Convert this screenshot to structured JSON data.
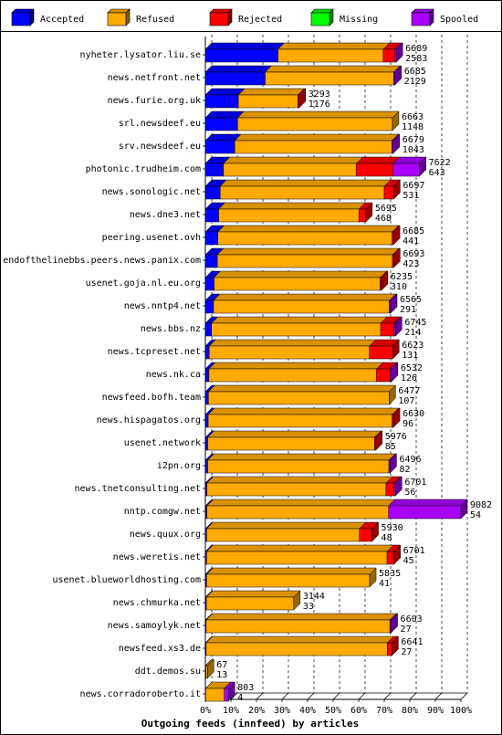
{
  "colors": {
    "Accepted": "#0000ff",
    "Refused": "#ffaa00",
    "Rejected": "#ff0000",
    "Missing": "#00ff00",
    "Spooled": "#aa00ff"
  },
  "chart_data": {
    "type": "bar",
    "orientation": "horizontal",
    "stacked": true,
    "xlabel": "Outgoing feeds (innfeed) by articles",
    "xlim": [
      0,
      100
    ],
    "x_ticks": [
      "0%",
      "10%",
      "20%",
      "30%",
      "40%",
      "50%",
      "60%",
      "70%",
      "80%",
      "90%",
      "100%"
    ],
    "legend_position": "top",
    "grid": "vertical dashed",
    "series_names": [
      "Accepted",
      "Refused",
      "Rejected",
      "Missing",
      "Spooled"
    ],
    "rows": [
      {
        "site": "nyheter.lysator.liu.se",
        "offered": "6689",
        "accepted": "2583",
        "values": [
          28.4,
          41.2,
          4.6,
          0,
          0.5
        ]
      },
      {
        "site": "news.netfront.net",
        "offered": "6685",
        "accepted": "2129",
        "values": [
          23.4,
          50.3,
          0,
          0,
          0.5
        ]
      },
      {
        "site": "news.furie.org.uk",
        "offered": "3293",
        "accepted": "1176",
        "values": [
          12.9,
          23.3,
          0.5,
          0,
          0
        ]
      },
      {
        "site": "srl.newsdeef.eu",
        "offered": "6663",
        "accepted": "1148",
        "values": [
          12.6,
          60.6,
          0,
          0,
          0
        ]
      },
      {
        "site": "srv.newsdeef.eu",
        "offered": "6679",
        "accepted": "1043",
        "values": [
          11.5,
          61.5,
          0,
          0,
          0.5
        ]
      },
      {
        "site": "photonic.trudheim.com",
        "offered": "7622",
        "accepted": "643",
        "values": [
          7.1,
          52.0,
          14.4,
          0,
          10.3
        ]
      },
      {
        "site": "news.sonologic.net",
        "offered": "6697",
        "accepted": "531",
        "values": [
          5.8,
          64.2,
          3.7,
          0,
          0
        ]
      },
      {
        "site": "news.dne3.net",
        "offered": "5695",
        "accepted": "468",
        "values": [
          5.2,
          54.9,
          2.7,
          0,
          0
        ]
      },
      {
        "site": "peering.usenet.ovh",
        "offered": "6685",
        "accepted": "441",
        "values": [
          4.9,
          68.2,
          0.5,
          0,
          0
        ]
      },
      {
        "site": "endofthelinebbs.peers.news.panix.com",
        "offered": "6693",
        "accepted": "423",
        "values": [
          4.7,
          68.5,
          0.5,
          0,
          0
        ]
      },
      {
        "site": "usenet.goja.nl.eu.org",
        "offered": "6235",
        "accepted": "310",
        "values": [
          3.4,
          65.0,
          0.5,
          0,
          0
        ]
      },
      {
        "site": "news.nntp4.net",
        "offered": "6565",
        "accepted": "291",
        "values": [
          3.2,
          68.8,
          0,
          0,
          0.5
        ]
      },
      {
        "site": "news.bbs.nz",
        "offered": "6745",
        "accepted": "214",
        "values": [
          2.4,
          66.2,
          5.3,
          0,
          0.5
        ]
      },
      {
        "site": "news.tcpreset.net",
        "offered": "6623",
        "accepted": "131",
        "values": [
          1.5,
          62.7,
          9.1,
          0,
          0
        ]
      },
      {
        "site": "news.nk.ca",
        "offered": "6532",
        "accepted": "126",
        "values": [
          1.4,
          65.6,
          5.3,
          0,
          0.5
        ]
      },
      {
        "site": "newsfeed.bofh.team",
        "offered": "6477",
        "accepted": "107",
        "values": [
          1.2,
          70.7,
          0,
          0,
          0
        ]
      },
      {
        "site": "news.hispagatos.org",
        "offered": "6630",
        "accepted": "96",
        "values": [
          1.1,
          72.0,
          0.5,
          0,
          0
        ]
      },
      {
        "site": "usenet.network",
        "offered": "5976",
        "accepted": "85",
        "values": [
          0.9,
          65.3,
          0.5,
          0,
          0
        ]
      },
      {
        "site": "i2pn.org",
        "offered": "6496",
        "accepted": "82",
        "values": [
          0.9,
          70.9,
          0,
          0,
          0.5
        ]
      },
      {
        "site": "news.tnetconsulting.net",
        "offered": "6701",
        "accepted": "56",
        "values": [
          0.6,
          70.1,
          3.2,
          0,
          0.5
        ]
      },
      {
        "site": "nntp.comgw.net",
        "offered": "9082",
        "accepted": "54",
        "values": [
          0.6,
          71.1,
          0,
          0,
          28.3
        ]
      },
      {
        "site": "news.quux.org",
        "offered": "5930",
        "accepted": "48",
        "values": [
          0.5,
          59.8,
          4.9,
          0,
          0
        ]
      },
      {
        "site": "news.weretis.net",
        "offered": "6701",
        "accepted": "45",
        "values": [
          0.5,
          70.6,
          2.7,
          0,
          0
        ]
      },
      {
        "site": "usenet.blueworldhosting.com",
        "offered": "5835",
        "accepted": "41",
        "values": [
          0.5,
          63.8,
          0,
          0,
          0
        ]
      },
      {
        "site": "news.chmurka.net",
        "offered": "3144",
        "accepted": "33",
        "values": [
          0.4,
          34.2,
          0,
          0,
          0
        ]
      },
      {
        "site": "news.samoylyk.net",
        "offered": "6603",
        "accepted": "27",
        "values": [
          0.3,
          71.9,
          0,
          0,
          0.5
        ]
      },
      {
        "site": "newsfeed.xs3.de",
        "offered": "6641",
        "accepted": "27",
        "values": [
          0.3,
          70.9,
          1.8,
          0,
          0
        ]
      },
      {
        "site": "ddt.demos.su",
        "offered": "67",
        "accepted": "13",
        "values": [
          0.2,
          0.6,
          0,
          0,
          0
        ]
      },
      {
        "site": "news.corradoroberto.it",
        "offered": "803",
        "accepted": "4",
        "values": [
          0.1,
          7.3,
          0,
          0,
          1.6
        ]
      }
    ]
  }
}
